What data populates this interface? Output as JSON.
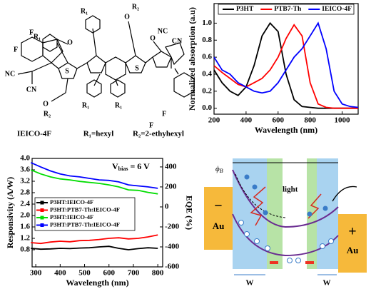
{
  "chart_data": [
    {
      "type": "line",
      "xlabel": "Wavelength (nm)",
      "ylabel": "Normalized absorption (a.u)",
      "x": [
        200,
        250,
        300,
        350,
        400,
        450,
        500,
        550,
        600,
        650,
        700,
        750,
        800,
        850,
        900,
        950,
        1000,
        1050,
        1100
      ],
      "xlim": [
        200,
        1100
      ],
      "xticks": [
        200,
        400,
        600,
        800,
        1000
      ],
      "ylim": [
        -0.07,
        1.23
      ],
      "yticks": [
        {
          "value": 0,
          "label": "0.0"
        },
        {
          "value": 0.2,
          "label": "0.2"
        },
        {
          "value": 0.4,
          "label": "0.4"
        },
        {
          "value": 0.6,
          "label": "0.6"
        },
        {
          "value": 0.8,
          "label": "0.8"
        },
        {
          "value": 1,
          "label": "1.0"
        }
      ],
      "legend": "top",
      "series": [
        {
          "name": "P3HT",
          "color": "#000000",
          "values": [
            0.45,
            0.3,
            0.2,
            0.15,
            0.25,
            0.5,
            0.85,
            1.0,
            0.9,
            0.4,
            0.1,
            0.02,
            0.01,
            0,
            0,
            0,
            0,
            0,
            0
          ]
        },
        {
          "name": "PTB7-Th",
          "color": "#ff0000",
          "values": [
            0.5,
            0.42,
            0.35,
            0.28,
            0.25,
            0.3,
            0.35,
            0.45,
            0.6,
            0.82,
            0.98,
            0.85,
            0.3,
            0.05,
            0.01,
            0,
            0,
            0,
            0
          ]
        },
        {
          "name": "IEICO-4F",
          "color": "#0000ff",
          "values": [
            0.6,
            0.45,
            0.4,
            0.3,
            0.25,
            0.2,
            0.18,
            0.2,
            0.3,
            0.45,
            0.6,
            0.7,
            0.85,
            1.0,
            0.7,
            0.2,
            0.05,
            0.02,
            0.01
          ]
        }
      ]
    },
    {
      "type": "line",
      "xlabel": "Wavelength (nm)",
      "ylabel": "Responsivity (A/W)",
      "y2label": "EQE (%)",
      "annotation": {
        "main": "V",
        "sub": "bias",
        "rest": " = 6 V"
      },
      "x": [
        280,
        320,
        360,
        400,
        440,
        480,
        520,
        560,
        600,
        640,
        680,
        720,
        760,
        800
      ],
      "xlim": [
        285,
        820
      ],
      "xticks": [
        300,
        400,
        500,
        600,
        700,
        800
      ],
      "ylim": [
        0.2,
        4.0
      ],
      "yticks": [
        {
          "value": 0.8,
          "label": "0.8"
        },
        {
          "value": 1.2,
          "label": "1.2"
        },
        {
          "value": 1.6,
          "label": "1.6"
        },
        {
          "value": 2,
          "label": "2.0"
        },
        {
          "value": 2.4,
          "label": "2.4"
        },
        {
          "value": 2.8,
          "label": "2.8"
        },
        {
          "value": 3.2,
          "label": "3.2"
        },
        {
          "value": 3.6,
          "label": "3.6"
        },
        {
          "value": 4,
          "label": "4.0"
        }
      ],
      "y2lim": [
        -600,
        485
      ],
      "y2ticks": [
        -600,
        -400,
        -200,
        0,
        200,
        400
      ],
      "legend": "left",
      "series": [
        {
          "name": "P3HT:IEICO-4F",
          "color": "#000000",
          "values": [
            0.85,
            0.82,
            0.83,
            0.85,
            0.84,
            0.86,
            0.87,
            0.9,
            0.92,
            0.85,
            0.8,
            0.84,
            0.87,
            0.85
          ]
        },
        {
          "name": "P3HT:PTB7-Th:IEICO-4F",
          "color": "#ff0000",
          "values": [
            1.05,
            1.02,
            1.07,
            1.1,
            1.08,
            1.12,
            1.13,
            1.16,
            1.2,
            1.22,
            1.18,
            1.2,
            1.25,
            1.32
          ]
        },
        {
          "name": "P3HT:IEICO-4F",
          "color": "#00dd00",
          "axis": "y2",
          "values": [
            370,
            330,
            300,
            280,
            270,
            255,
            245,
            235,
            220,
            200,
            170,
            165,
            145,
            130
          ]
        },
        {
          "name": "P3HT:PTB7-Th:IEICO-4F",
          "color": "#0000ff",
          "axis": "y2",
          "values": [
            443,
            400,
            360,
            330,
            310,
            300,
            285,
            270,
            265,
            250,
            220,
            210,
            200,
            186
          ]
        }
      ]
    }
  ],
  "structure": {
    "name": "IEICO-4F",
    "r1": "R₁=hexyl",
    "r2": "R₂=2-ethyhexyl",
    "atoms": [
      "F",
      "F",
      "O",
      "NC",
      "CN",
      "S",
      "O",
      "R₂",
      "R₁",
      "R₁",
      "R₁",
      "R₁",
      "O",
      "R₂",
      "S",
      "O",
      "NC",
      "CN",
      "F",
      "F"
    ]
  },
  "diagram": {
    "phi": "ϕ",
    "phi_sub": "B",
    "light": "light",
    "minus": "−",
    "left_metal": "Au",
    "plus": "+",
    "right_metal": "Au",
    "w_left": "W",
    "w_right": "W"
  }
}
